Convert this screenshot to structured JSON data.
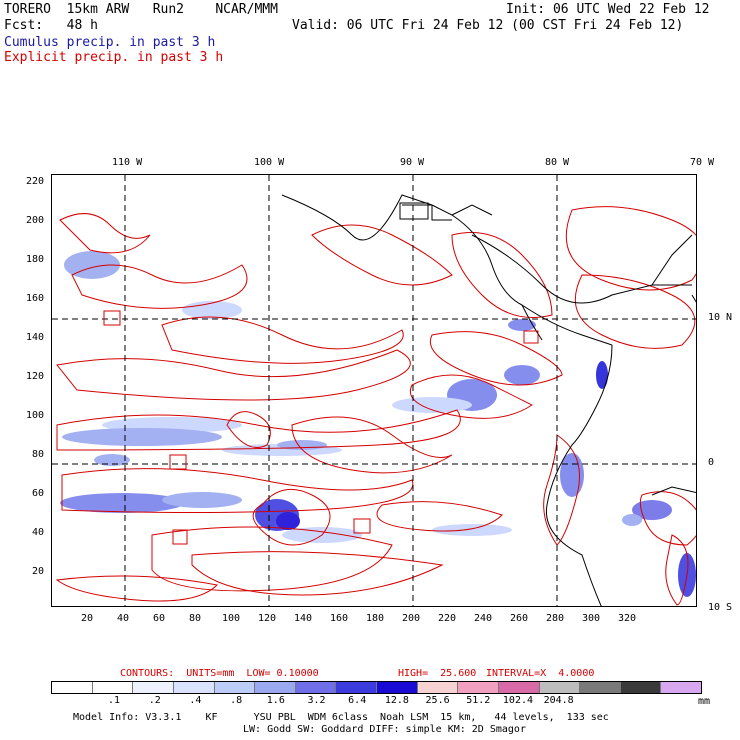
{
  "header": {
    "model": "TORERO  15km ARW   Run2    NCAR/MMM",
    "init": "Init: 06 UTC Wed 22 Feb 12",
    "fcst": "Fcst:   48 h",
    "valid": "Valid: 06 UTC Fri 24 Feb 12 (00 CST Fri 24 Feb 12)",
    "cumulus": "Cumulus precip. in past 3 h",
    "explicit": "Explicit precip. in past 3 h"
  },
  "top_ticks": [
    "110 W",
    "100 W",
    "90 W",
    "80 W",
    "70 W"
  ],
  "left_ticks": [
    "220",
    "200",
    "180",
    "160",
    "140",
    "120",
    "100",
    "80",
    "60",
    "40",
    "20"
  ],
  "right_ticks": [
    "10 N",
    "0",
    "10 S"
  ],
  "bottom_ticks": [
    "20",
    "40",
    "60",
    "80",
    "100",
    "120",
    "140",
    "160",
    "180",
    "200",
    "220",
    "240",
    "260",
    "280",
    "300",
    "320"
  ],
  "contour_info": {
    "contours": "CONTOURS:  UNITS=mm  LOW= 0.10000",
    "high": "HIGH=  25.600",
    "interval": "INTERVAL=X  4.0000"
  },
  "colorbar": {
    "colors": [
      "#ffffff",
      "#ffffff",
      "#eef2ff",
      "#d9e2ff",
      "#bccdf8",
      "#9aa8f0",
      "#6f6fe8",
      "#3c3cde",
      "#1a0ad6",
      "#f6d2d2",
      "#f2a0c0",
      "#d86aa8",
      "#bdbdbd",
      "#7a7a7a",
      "#3a3a3a",
      "#d7a8f0"
    ],
    "labels": [
      ".1",
      ".2",
      ".4",
      ".8",
      "1.6",
      "3.2",
      "6.4",
      "12.8",
      "25.6",
      "51.2",
      "102.4",
      "204.8"
    ],
    "unit": "mm"
  },
  "footer": {
    "line1": "Model Info: V3.3.1    KF      YSU PBL  WDM 6class  Noah LSM  15 km,   44 levels,  133 sec",
    "line2": "LW: Godd SW: Goddard DIFF: simple KM: 2D Smagor"
  },
  "map_colors": {
    "explicit_contour": "#d40000",
    "cumulus_light": "#c8d4ff",
    "cumulus_mid": "#7a82ec",
    "cumulus_heavy": "#2020d8",
    "coastline": "#000000"
  }
}
